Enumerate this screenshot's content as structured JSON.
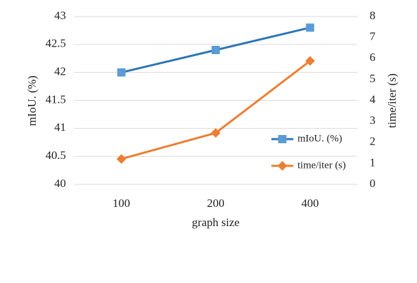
{
  "chart_data": {
    "type": "line",
    "x_label": "graph size",
    "y_label": "mIoU. (%)",
    "y2_label": "time/iter (s)",
    "categories": [
      "100",
      "200",
      "400"
    ],
    "series": [
      {
        "name": "mIoU. (%)",
        "color": "#2e75b6",
        "marker_color": "#5b9bd5",
        "marker": "square",
        "values": [
          42.0,
          42.4,
          42.8
        ]
      },
      {
        "name": "time/iter (s)",
        "color": "#ed7d31",
        "marker_color": "#ed7d31",
        "marker": "diamond",
        "axis": "y2",
        "values": [
          1.21,
          2.45,
          5.88
        ]
      }
    ],
    "ylim": [
      40,
      43
    ],
    "yticks": [
      40,
      40.5,
      41,
      41.5,
      42,
      42.5,
      43
    ],
    "y2lim": [
      0,
      8
    ],
    "y2ticks": [
      0,
      1,
      2,
      3,
      4,
      5,
      6,
      7,
      8
    ],
    "grid": true,
    "legend": "right"
  }
}
